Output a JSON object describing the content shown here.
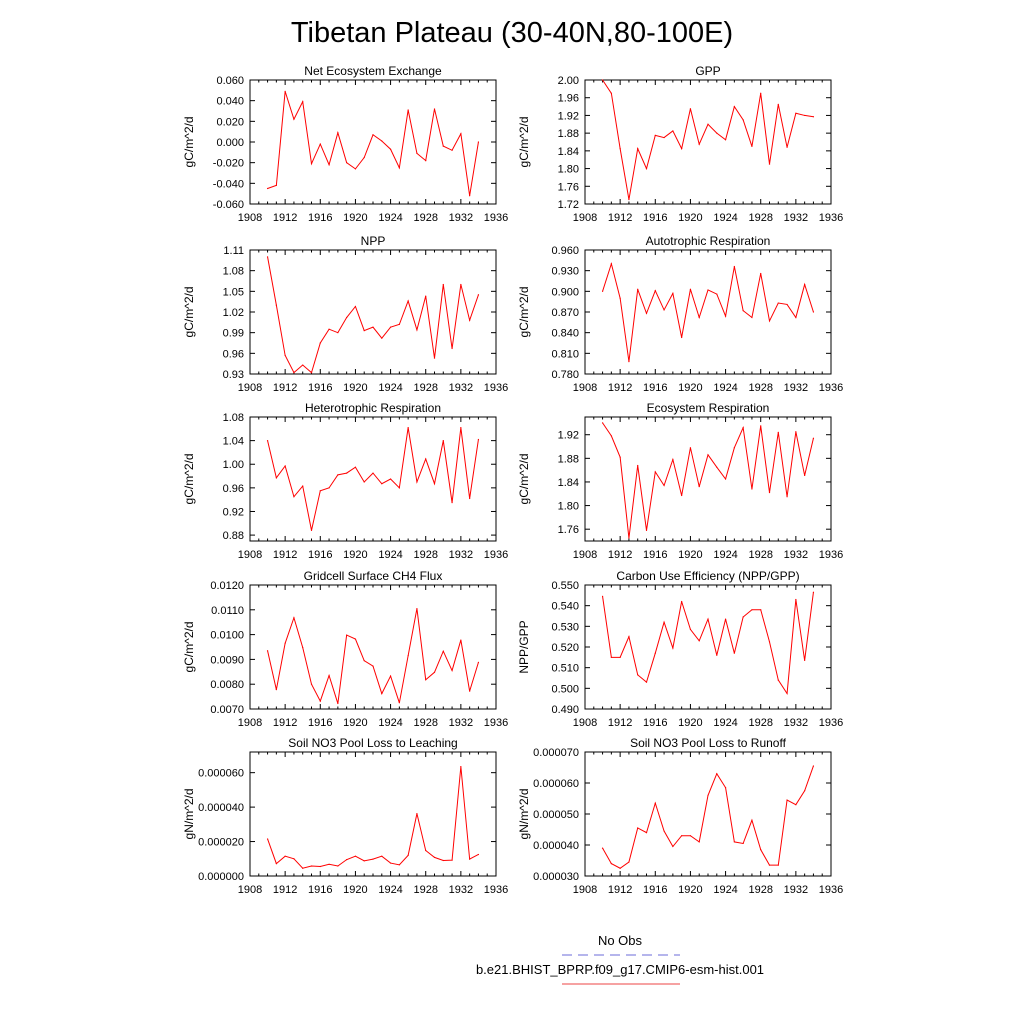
{
  "figure_title": "Tibetan Plateau (30-40N,80-100E)",
  "legend": [
    {
      "label": "No Obs",
      "color": "#6b6bd8",
      "style": "dashed"
    },
    {
      "label": "b.e21.BHIST_BPRP.f09_g17.CMIP6-esm-hist.001",
      "color": "#ee4444",
      "style": "solid"
    }
  ],
  "series_color": "#ff0000",
  "chart_data": [
    {
      "type": "line",
      "title": "Net Ecosystem Exchange",
      "ylabel": "gC/m^2/d",
      "xlim": [
        1908,
        1936
      ],
      "xticks": [
        "1908",
        "1912",
        "1916",
        "1920",
        "1924",
        "1928",
        "1932",
        "1936"
      ],
      "ylim": [
        -0.06,
        0.06
      ],
      "yticks": [
        "-0.060",
        "-0.040",
        "-0.020",
        "0.000",
        "0.020",
        "0.040",
        "0.060"
      ],
      "x": [
        1910,
        1911,
        1912,
        1913,
        1914,
        1915,
        1916,
        1917,
        1918,
        1919,
        1920,
        1921,
        1922,
        1923,
        1924,
        1925,
        1926,
        1927,
        1928,
        1929,
        1930,
        1931,
        1932,
        1933,
        1934
      ],
      "y": [
        -0.045,
        -0.042,
        0.049,
        0.022,
        0.039,
        -0.021,
        -0.002,
        -0.022,
        0.009,
        -0.02,
        -0.026,
        -0.015,
        0.007,
        0.001,
        -0.007,
        -0.025,
        0.031,
        -0.011,
        -0.018,
        0.032,
        -0.004,
        -0.008,
        0.008,
        -0.052,
        0.0
      ]
    },
    {
      "type": "line",
      "title": "GPP",
      "ylabel": "gC/m^2/d",
      "xlim": [
        1908,
        1936
      ],
      "xticks": [
        "1908",
        "1912",
        "1916",
        "1920",
        "1924",
        "1928",
        "1932",
        "1936"
      ],
      "ylim": [
        1.72,
        2.0
      ],
      "yticks": [
        "1.72",
        "1.76",
        "1.80",
        "1.84",
        "1.88",
        "1.92",
        "1.96",
        "2.00"
      ],
      "x": [
        1910,
        1911,
        1912,
        1913,
        1914,
        1915,
        1916,
        1917,
        1918,
        1919,
        1920,
        1921,
        1922,
        1923,
        1924,
        1925,
        1926,
        1927,
        1928,
        1929,
        1930,
        1931,
        1932,
        1933,
        1934
      ],
      "y": [
        2.0,
        1.97,
        1.845,
        1.73,
        1.845,
        1.8,
        1.875,
        1.87,
        1.885,
        1.845,
        1.935,
        1.855,
        1.9,
        1.88,
        1.865,
        1.94,
        1.91,
        1.85,
        1.97,
        1.81,
        1.945,
        1.848,
        1.925,
        1.92,
        1.917
      ]
    },
    {
      "type": "line",
      "title": "NPP",
      "ylabel": "gC/m^2/d",
      "xlim": [
        1908,
        1936
      ],
      "xticks": [
        "1908",
        "1912",
        "1916",
        "1920",
        "1924",
        "1928",
        "1932",
        "1936"
      ],
      "ylim": [
        0.93,
        1.11
      ],
      "yticks": [
        "0.93",
        "0.96",
        "0.99",
        "1.02",
        "1.05",
        "1.08",
        "1.11"
      ],
      "x": [
        1910,
        1911,
        1912,
        1913,
        1914,
        1915,
        1916,
        1917,
        1918,
        1919,
        1920,
        1921,
        1922,
        1923,
        1924,
        1925,
        1926,
        1927,
        1928,
        1929,
        1930,
        1931,
        1932,
        1933,
        1934
      ],
      "y": [
        1.1,
        1.03,
        0.957,
        0.932,
        0.943,
        0.932,
        0.975,
        0.995,
        0.99,
        1.012,
        1.028,
        0.993,
        0.998,
        0.982,
        0.998,
        1.002,
        1.036,
        0.994,
        1.043,
        0.953,
        1.06,
        0.967,
        1.06,
        1.008,
        1.045
      ]
    },
    {
      "type": "line",
      "title": "Autotrophic Respiration",
      "ylabel": "gC/m^2/d",
      "xlim": [
        1908,
        1936
      ],
      "xticks": [
        "1908",
        "1912",
        "1916",
        "1920",
        "1924",
        "1928",
        "1932",
        "1936"
      ],
      "ylim": [
        0.78,
        0.96
      ],
      "yticks": [
        "0.780",
        "0.810",
        "0.840",
        "0.870",
        "0.900",
        "0.930",
        "0.960"
      ],
      "x": [
        1910,
        1911,
        1912,
        1913,
        1914,
        1915,
        1916,
        1917,
        1918,
        1919,
        1920,
        1921,
        1922,
        1923,
        1924,
        1925,
        1926,
        1927,
        1928,
        1929,
        1930,
        1931,
        1932,
        1933,
        1934
      ],
      "y": [
        0.9,
        0.94,
        0.89,
        0.798,
        0.903,
        0.868,
        0.901,
        0.873,
        0.897,
        0.833,
        0.903,
        0.862,
        0.902,
        0.896,
        0.864,
        0.936,
        0.872,
        0.862,
        0.926,
        0.857,
        0.883,
        0.881,
        0.862,
        0.91,
        0.87
      ]
    },
    {
      "type": "line",
      "title": "Heterotrophic Respiration",
      "ylabel": "gC/m^2/d",
      "xlim": [
        1908,
        1936
      ],
      "xticks": [
        "1908",
        "1912",
        "1916",
        "1920",
        "1924",
        "1928",
        "1932",
        "1936"
      ],
      "ylim": [
        0.87,
        1.08
      ],
      "yticks": [
        "0.88",
        "0.92",
        "0.96",
        "1.00",
        "1.04",
        "1.08"
      ],
      "x": [
        1910,
        1911,
        1912,
        1913,
        1914,
        1915,
        1916,
        1917,
        1918,
        1919,
        1920,
        1921,
        1922,
        1923,
        1924,
        1925,
        1926,
        1927,
        1928,
        1929,
        1930,
        1931,
        1932,
        1933,
        1934
      ],
      "y": [
        1.04,
        0.977,
        0.997,
        0.945,
        0.963,
        0.888,
        0.955,
        0.96,
        0.982,
        0.985,
        0.995,
        0.97,
        0.985,
        0.967,
        0.975,
        0.96,
        1.062,
        0.97,
        1.009,
        0.967,
        1.04,
        0.935,
        1.062,
        0.942,
        1.042
      ]
    },
    {
      "type": "line",
      "title": "Ecosystem Respiration",
      "ylabel": "gC/m^2/d",
      "xlim": [
        1908,
        1936
      ],
      "xticks": [
        "1908",
        "1912",
        "1916",
        "1920",
        "1924",
        "1928",
        "1932",
        "1936"
      ],
      "ylim": [
        1.74,
        1.95
      ],
      "yticks": [
        "1.76",
        "1.80",
        "1.84",
        "1.88",
        "1.92"
      ],
      "x": [
        1910,
        1911,
        1912,
        1913,
        1914,
        1915,
        1916,
        1917,
        1918,
        1919,
        1920,
        1921,
        1922,
        1923,
        1924,
        1925,
        1926,
        1927,
        1928,
        1929,
        1930,
        1931,
        1932,
        1933,
        1934
      ],
      "y": [
        1.94,
        1.918,
        1.882,
        1.745,
        1.868,
        1.758,
        1.857,
        1.834,
        1.878,
        1.817,
        1.898,
        1.832,
        1.886,
        1.865,
        1.845,
        1.898,
        1.932,
        1.828,
        1.935,
        1.822,
        1.924,
        1.815,
        1.925,
        1.851,
        1.914
      ]
    },
    {
      "type": "line",
      "title": "Gridcell Surface CH4 Flux",
      "ylabel": "gC/m^2/d",
      "xlim": [
        1908,
        1936
      ],
      "xticks": [
        "1908",
        "1912",
        "1916",
        "1920",
        "1924",
        "1928",
        "1932",
        "1936"
      ],
      "ylim": [
        0.007,
        0.012
      ],
      "yticks": [
        "0.0070",
        "0.0080",
        "0.0090",
        "0.0100",
        "0.0110",
        "0.0120"
      ],
      "x": [
        1910,
        1911,
        1912,
        1913,
        1914,
        1915,
        1916,
        1917,
        1918,
        1919,
        1920,
        1921,
        1922,
        1923,
        1924,
        1925,
        1926,
        1927,
        1928,
        1929,
        1930,
        1931,
        1932,
        1933,
        1934
      ],
      "y": [
        0.00935,
        0.00778,
        0.00965,
        0.01068,
        0.00948,
        0.008,
        0.00732,
        0.00835,
        0.00722,
        0.00998,
        0.00982,
        0.00895,
        0.00873,
        0.00762,
        0.00833,
        0.00725,
        0.00915,
        0.01105,
        0.00818,
        0.00848,
        0.00933,
        0.00855,
        0.00978,
        0.00772,
        0.00888
      ]
    },
    {
      "type": "line",
      "title": "Carbon Use Efficiency (NPP/GPP)",
      "ylabel": "NPP/GPP",
      "xlim": [
        1908,
        1936
      ],
      "xticks": [
        "1908",
        "1912",
        "1916",
        "1920",
        "1924",
        "1928",
        "1932",
        "1936"
      ],
      "ylim": [
        0.49,
        0.55
      ],
      "yticks": [
        "0.490",
        "0.500",
        "0.510",
        "0.520",
        "0.530",
        "0.540",
        "0.550"
      ],
      "x": [
        1910,
        1911,
        1912,
        1913,
        1914,
        1915,
        1916,
        1917,
        1918,
        1919,
        1920,
        1921,
        1922,
        1923,
        1924,
        1925,
        1926,
        1927,
        1928,
        1929,
        1930,
        1931,
        1932,
        1933,
        1934
      ],
      "y": [
        0.5445,
        0.515,
        0.515,
        0.525,
        0.5065,
        0.503,
        0.517,
        0.532,
        0.5195,
        0.542,
        0.5285,
        0.523,
        0.5335,
        0.516,
        0.5335,
        0.517,
        0.5345,
        0.538,
        0.538,
        0.5225,
        0.504,
        0.4975,
        0.543,
        0.5135,
        0.5465
      ]
    },
    {
      "type": "line",
      "title": "Soil NO3 Pool Loss to Leaching",
      "ylabel": "gN/m^2/d",
      "xlim": [
        1908,
        1936
      ],
      "xticks": [
        "1908",
        "1912",
        "1916",
        "1920",
        "1924",
        "1928",
        "1932",
        "1936"
      ],
      "ylim": [
        0.0,
        7.2e-05
      ],
      "yticks": [
        "0.000000",
        "0.000020",
        "0.000040",
        "0.000060"
      ],
      "x": [
        1910,
        1911,
        1912,
        1913,
        1914,
        1915,
        1916,
        1917,
        1918,
        1919,
        1920,
        1921,
        1922,
        1923,
        1924,
        1925,
        1926,
        1927,
        1928,
        1929,
        1930,
        1931,
        1932,
        1933,
        1934
      ],
      "y": [
        2.15e-05,
        7.2e-06,
        1.15e-05,
        1e-05,
        4.5e-06,
        5.8e-06,
        5.5e-06,
        6.8e-06,
        5.8e-06,
        9.5e-06,
        1.15e-05,
        8.8e-06,
        9.8e-06,
        1.15e-05,
        7.5e-06,
        6.5e-06,
        1.2e-05,
        3.62e-05,
        1.48e-05,
        1.08e-05,
        9e-06,
        9.2e-06,
        6.35e-05,
        9.8e-06,
        1.25e-05
      ]
    },
    {
      "type": "line",
      "title": "Soil NO3 Pool Loss to Runoff",
      "ylabel": "gN/m^2/d",
      "xlim": [
        1908,
        1936
      ],
      "xticks": [
        "1908",
        "1912",
        "1916",
        "1920",
        "1924",
        "1928",
        "1932",
        "1936"
      ],
      "ylim": [
        3e-05,
        7e-05
      ],
      "yticks": [
        "0.000030",
        "0.000040",
        "0.000050",
        "0.000060",
        "0.000070"
      ],
      "x": [
        1910,
        1911,
        1912,
        1913,
        1914,
        1915,
        1916,
        1917,
        1918,
        1919,
        1920,
        1921,
        1922,
        1923,
        1924,
        1925,
        1926,
        1927,
        1928,
        1929,
        1930,
        1931,
        1932,
        1933,
        1934
      ],
      "y": [
        3.9e-05,
        3.4e-05,
        3.25e-05,
        3.45e-05,
        4.55e-05,
        4.4e-05,
        5.35e-05,
        4.45e-05,
        3.95e-05,
        4.3e-05,
        4.3e-05,
        4.1e-05,
        5.6e-05,
        6.3e-05,
        5.85e-05,
        4.1e-05,
        4.05e-05,
        4.8e-05,
        3.85e-05,
        3.35e-05,
        3.35e-05,
        5.45e-05,
        5.3e-05,
        5.75e-05,
        6.55e-05
      ]
    }
  ]
}
